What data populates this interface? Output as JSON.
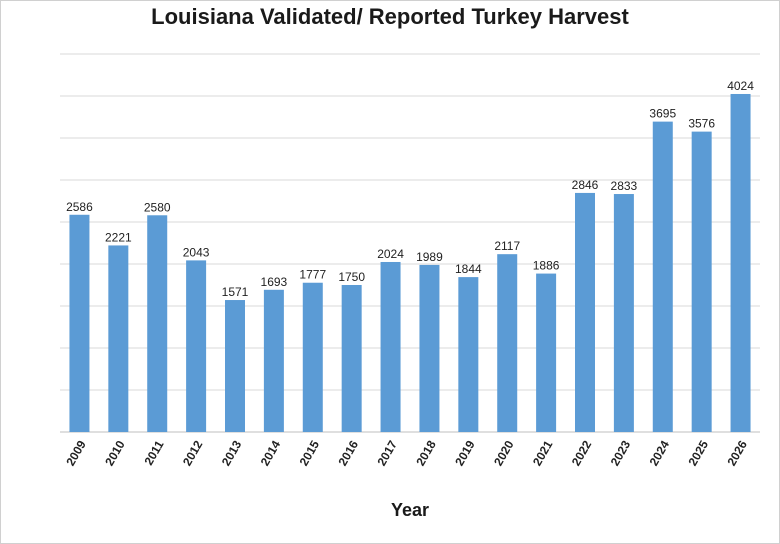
{
  "chart_data": {
    "type": "bar",
    "title": "Louisiana Validated/ Reported Turkey Harvest",
    "xlabel": "Year",
    "ylabel": "",
    "categories": [
      "2009",
      "2010",
      "2011",
      "2012",
      "2013",
      "2014",
      "2015",
      "2016",
      "2017",
      "2018",
      "2019",
      "2020",
      "2021",
      "2022",
      "2023",
      "2024",
      "2025",
      "2026"
    ],
    "values": [
      2586,
      2221,
      2580,
      2043,
      1571,
      1693,
      1777,
      1750,
      2024,
      1989,
      1844,
      2117,
      1886,
      2846,
      2833,
      3695,
      3576,
      4024
    ],
    "ylim": [
      0,
      4500
    ],
    "grid": true,
    "bar_color": "#5b9bd5",
    "grid_color": "#d9d9d9"
  }
}
